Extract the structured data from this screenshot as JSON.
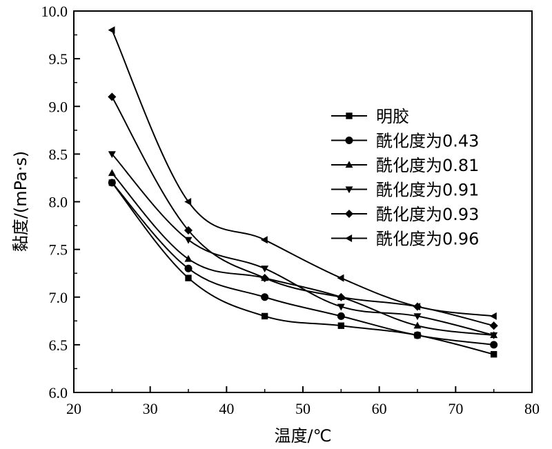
{
  "chart_data": {
    "type": "line",
    "xlabel": "温度/℃",
    "ylabel": "黏度/(mPa·s)",
    "xlim": [
      20,
      80
    ],
    "ylim": [
      6.0,
      10.0
    ],
    "xticks": [
      20,
      30,
      40,
      50,
      60,
      70,
      80
    ],
    "yticks": [
      "6.0",
      "6.5",
      "7.0",
      "7.5",
      "8.0",
      "8.5",
      "9.0",
      "9.5",
      "10.0"
    ],
    "x": [
      25,
      35,
      45,
      55,
      65,
      75
    ],
    "legend_position": "upper-right",
    "series": [
      {
        "name": "明胶",
        "marker": "square",
        "values": [
          8.2,
          7.2,
          6.8,
          6.7,
          6.6,
          6.4
        ]
      },
      {
        "name": "酰化度为0.43",
        "marker": "circle",
        "values": [
          8.2,
          7.3,
          7.0,
          6.8,
          6.6,
          6.5
        ]
      },
      {
        "name": "酰化度为0.81",
        "marker": "triangle-up",
        "values": [
          8.3,
          7.4,
          7.2,
          7.0,
          6.7,
          6.6
        ]
      },
      {
        "name": "酰化度为0.91",
        "marker": "triangle-down",
        "values": [
          8.5,
          7.6,
          7.3,
          6.9,
          6.8,
          6.6
        ]
      },
      {
        "name": "酰化度为0.93",
        "marker": "diamond",
        "values": [
          9.1,
          7.7,
          7.2,
          7.0,
          6.9,
          6.7
        ]
      },
      {
        "name": "酰化度为0.96",
        "marker": "triangle-left",
        "values": [
          9.8,
          8.0,
          7.6,
          7.2,
          6.9,
          6.8
        ]
      }
    ]
  }
}
